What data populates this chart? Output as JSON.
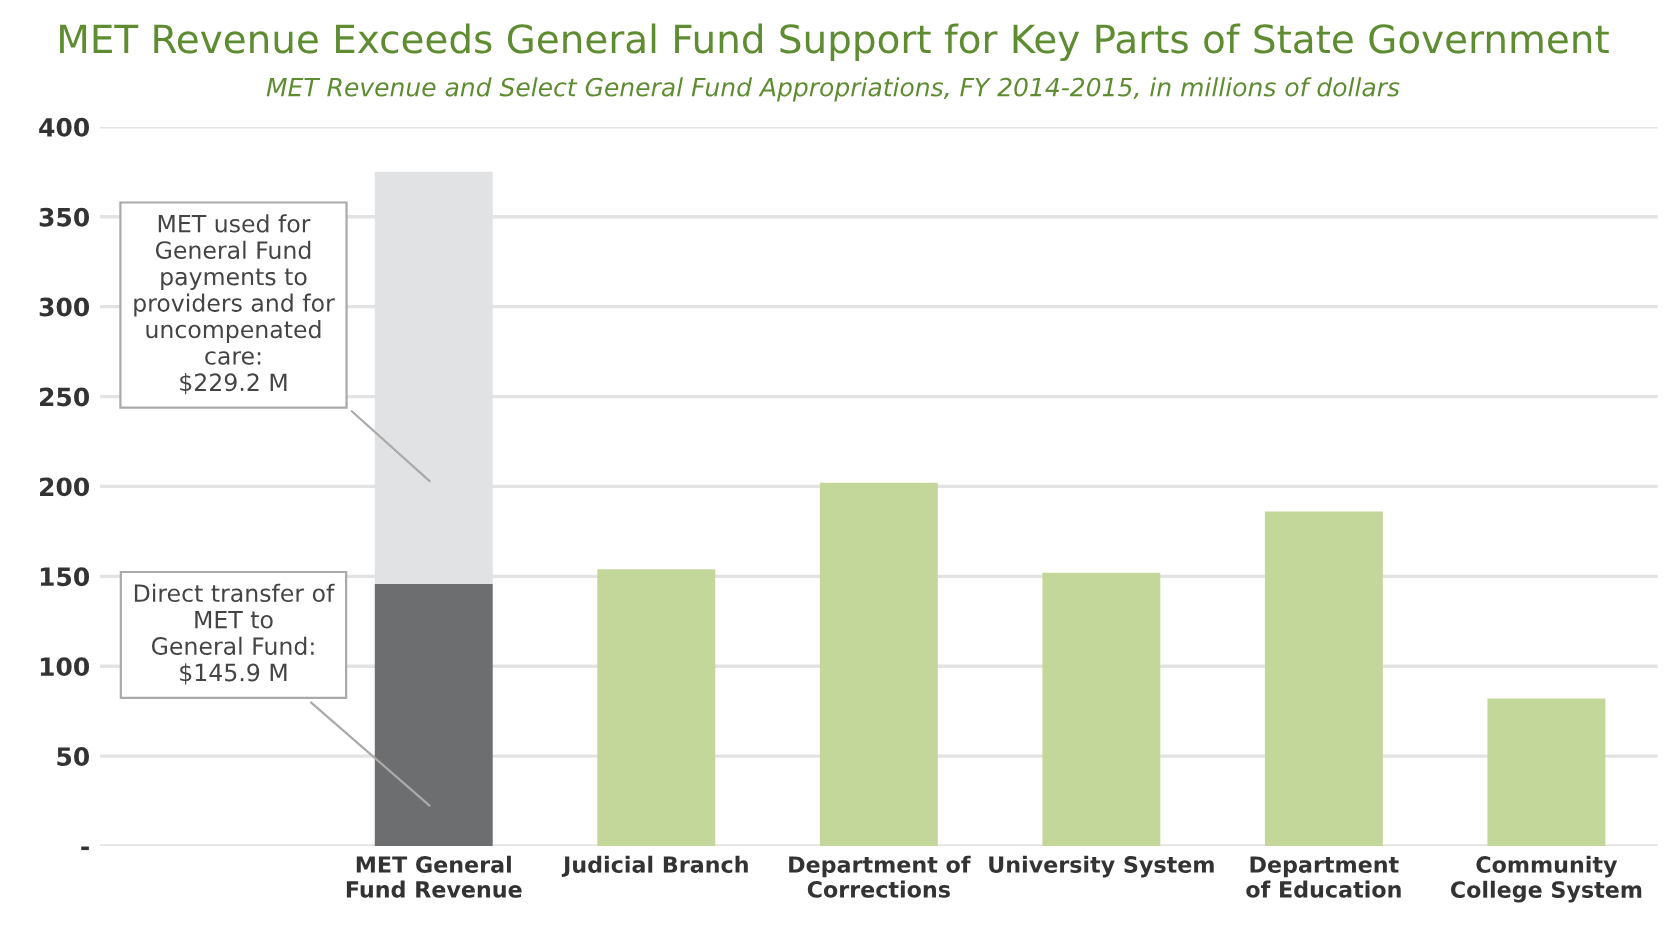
{
  "chart_data": {
    "type": "bar",
    "stacked": true,
    "title": "MET Revenue Exceeds General Fund Support for Key Parts of State Government",
    "subtitle": "MET Revenue and Select General Fund Appropriations, FY 2014-2015, in millions of dollars",
    "categories": [
      null,
      "MET General Fund Revenue",
      "Judicial Branch",
      "Department of Corrections",
      "University System",
      "Department of Education",
      "Community College System"
    ],
    "series": [
      {
        "color": "#6d6e70",
        "values": [
          null,
          145.9,
          null,
          null,
          null,
          null,
          null
        ]
      },
      {
        "color": "#e1e2e4",
        "values": [
          null,
          229.2,
          null,
          null,
          null,
          null,
          null
        ]
      },
      {
        "color": "#c4d79b",
        "values": [
          null,
          null,
          154,
          202,
          152,
          186,
          82
        ]
      }
    ],
    "ylim": [
      0,
      400
    ],
    "yticks": [
      {
        "value": 0,
        "label": "-"
      },
      50,
      100,
      150,
      200,
      250,
      300,
      350,
      400
    ],
    "grid": "y",
    "legend": false,
    "annotations": [
      "MET used for\nGeneral Fund\npayments to\nproviders and for\nuncompenated\ncare:\n$229.2 M",
      "Direct transfer of\nMET to\nGeneral Fund:\n$145.9 M"
    ]
  }
}
